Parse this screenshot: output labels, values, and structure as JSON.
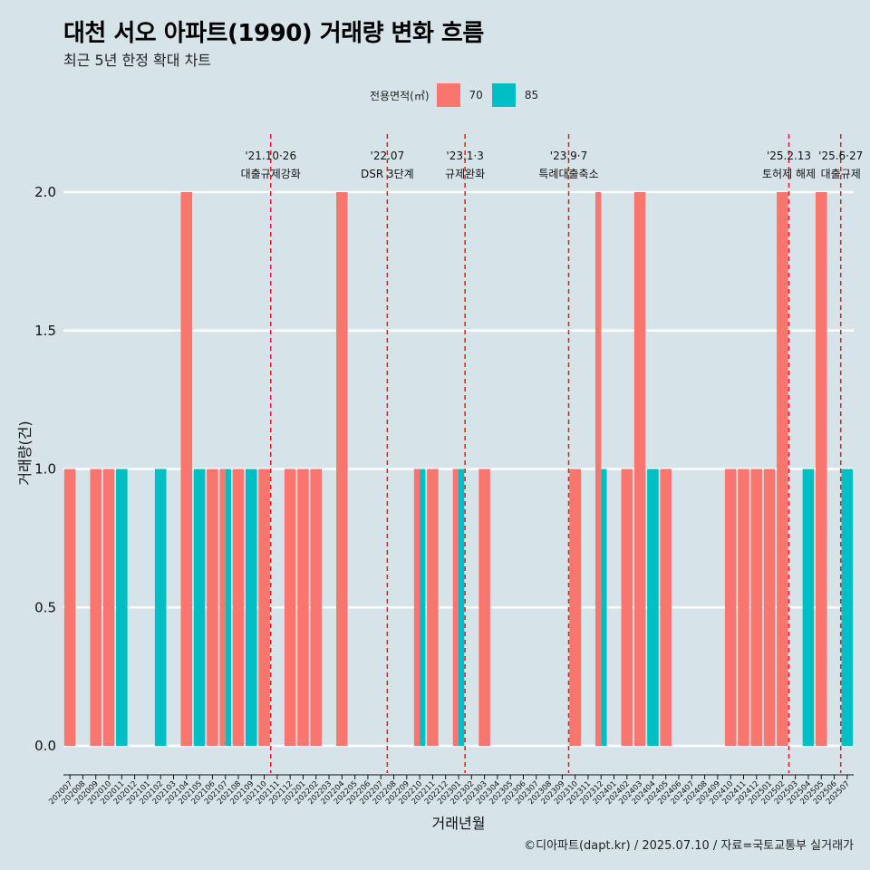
{
  "title": "대천 서오 아파트(1990) 거래량 변화 흐름",
  "subtitle": "최근 5년 한정 확대 차트",
  "caption": "©디아파트(dapt.kr) / 2025.07.10 / 자료=국토교통부 실거래가",
  "legend": {
    "title": "전용면적(㎡)",
    "items": [
      {
        "label": "70",
        "color": "#f8766d"
      },
      {
        "label": "85",
        "color": "#00bfc4"
      }
    ]
  },
  "chart_data": {
    "type": "bar",
    "xlabel": "거래년월",
    "ylabel": "거래량(건)",
    "ylim": [
      0,
      2.0
    ],
    "yticks": [
      "0.0",
      "0.5",
      "1.0",
      "1.5",
      "2.0"
    ],
    "grid": true,
    "legend_position": "top",
    "categories": [
      "202007",
      "202008",
      "202009",
      "202010",
      "202011",
      "202012",
      "202101",
      "202102",
      "202103",
      "202104",
      "202105",
      "202106",
      "202107",
      "202108",
      "202109",
      "202110",
      "202111",
      "202112",
      "202201",
      "202202",
      "202203",
      "202204",
      "202205",
      "202206",
      "202207",
      "202208",
      "202209",
      "202210",
      "202211",
      "202212",
      "202301",
      "202302",
      "202303",
      "202304",
      "202305",
      "202306",
      "202307",
      "202308",
      "202309",
      "202310",
      "202311",
      "202312",
      "202401",
      "202402",
      "202403",
      "202404",
      "202405",
      "202406",
      "202407",
      "202408",
      "202409",
      "202410",
      "202411",
      "202412",
      "202501",
      "202502",
      "202503",
      "202504",
      "202505",
      "202506",
      "202507"
    ],
    "series": [
      {
        "name": "70",
        "color": "#f8766d",
        "values": [
          1,
          0,
          1,
          1,
          0,
          0,
          0,
          0,
          0,
          2,
          0,
          1,
          1,
          1,
          0,
          1,
          0,
          1,
          1,
          1,
          0,
          2,
          0,
          0,
          0,
          0,
          0,
          1,
          1,
          0,
          1,
          0,
          1,
          0,
          0,
          0,
          0,
          0,
          0,
          1,
          0,
          2,
          0,
          1,
          2,
          0,
          1,
          0,
          0,
          0,
          0,
          1,
          1,
          1,
          1,
          2,
          0,
          0,
          2,
          0,
          0
        ]
      },
      {
        "name": "85",
        "color": "#00bfc4",
        "values": [
          0,
          0,
          0,
          0,
          1,
          0,
          0,
          1,
          0,
          0,
          1,
          0,
          1,
          0,
          1,
          0,
          0,
          0,
          0,
          0,
          0,
          0,
          0,
          0,
          0,
          0,
          0,
          1,
          0,
          0,
          1,
          0,
          0,
          0,
          0,
          0,
          0,
          0,
          0,
          0,
          0,
          1,
          0,
          0,
          0,
          1,
          0,
          0,
          0,
          0,
          0,
          0,
          0,
          0,
          0,
          0,
          0,
          1,
          0,
          0,
          1
        ]
      }
    ],
    "annotations": [
      {
        "category_index": 15.5,
        "date": "'21.10·26",
        "label": "대출규제강화"
      },
      {
        "category_index": 24.5,
        "date": "'22.07",
        "label": "DSR 3단계"
      },
      {
        "category_index": 30.5,
        "date": "'23.1·3",
        "label": "규제완화"
      },
      {
        "category_index": 38.5,
        "date": "'23.9·7",
        "label": "특례대출축소"
      },
      {
        "category_index": 55.5,
        "date": "'25.2.13",
        "label": "토허제 해제"
      },
      {
        "category_index": 59.5,
        "date": "'25.6·27",
        "label": "대출규제"
      }
    ]
  }
}
